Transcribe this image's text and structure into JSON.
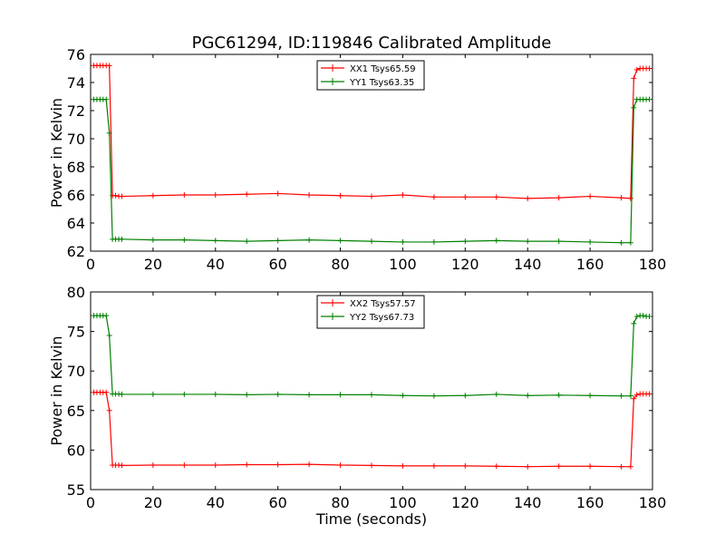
{
  "title": "PGC61294, ID:119846 Calibrated Amplitude",
  "colors": {
    "red": "#ff0000",
    "green": "#008000",
    "axis": "#000000",
    "background": "#ffffff"
  },
  "chart_data": [
    {
      "type": "line",
      "ylabel": "Power in Kelvin",
      "xlabel": "",
      "xlim": [
        0,
        180
      ],
      "ylim": [
        62,
        76
      ],
      "xticks": [
        0,
        20,
        40,
        60,
        80,
        100,
        120,
        140,
        160,
        180
      ],
      "yticks": [
        62,
        64,
        66,
        68,
        70,
        72,
        74,
        76
      ],
      "legend": "top-center",
      "grid": false,
      "marker": "+",
      "x": [
        1,
        2,
        3,
        4,
        5,
        6,
        7,
        8,
        9,
        10,
        20,
        30,
        40,
        50,
        60,
        70,
        80,
        90,
        100,
        110,
        120,
        130,
        140,
        150,
        160,
        170,
        173,
        174,
        175,
        176,
        177,
        178,
        179
      ],
      "series": [
        {
          "name": "XX1 Tsys65.59",
          "color": "#ff0000",
          "values": [
            75.2,
            75.2,
            75.2,
            75.2,
            75.2,
            75.2,
            65.95,
            65.95,
            65.9,
            65.9,
            65.95,
            66.0,
            66.0,
            66.05,
            66.1,
            66.0,
            65.95,
            65.9,
            66.0,
            65.85,
            65.85,
            65.85,
            65.75,
            65.8,
            65.9,
            65.8,
            65.75,
            74.3,
            74.9,
            75.0,
            75.0,
            75.0,
            75.0
          ]
        },
        {
          "name": "YY1 Tsys63.35",
          "color": "#008000",
          "values": [
            72.8,
            72.8,
            72.8,
            72.8,
            72.8,
            70.4,
            62.85,
            62.85,
            62.85,
            62.85,
            62.8,
            62.8,
            62.75,
            62.7,
            62.75,
            62.8,
            62.75,
            62.7,
            62.65,
            62.65,
            62.7,
            62.75,
            62.7,
            62.7,
            62.65,
            62.6,
            62.6,
            72.2,
            72.8,
            72.8,
            72.8,
            72.8,
            72.8
          ]
        }
      ]
    },
    {
      "type": "line",
      "ylabel": "Power in Kelvin",
      "xlabel": "Time (seconds)",
      "xlim": [
        0,
        180
      ],
      "ylim": [
        55,
        80
      ],
      "xticks": [
        0,
        20,
        40,
        60,
        80,
        100,
        120,
        140,
        160,
        180
      ],
      "yticks": [
        55,
        60,
        65,
        70,
        75,
        80
      ],
      "legend": "top-center",
      "grid": false,
      "marker": "+",
      "x": [
        1,
        2,
        3,
        4,
        5,
        6,
        7,
        8,
        9,
        10,
        20,
        30,
        40,
        50,
        60,
        70,
        80,
        90,
        100,
        110,
        120,
        130,
        140,
        150,
        160,
        170,
        173,
        174,
        175,
        176,
        177,
        178,
        179
      ],
      "series": [
        {
          "name": "XX2 Tsys57.57",
          "color": "#ff0000",
          "values": [
            67.3,
            67.3,
            67.3,
            67.3,
            67.3,
            65.0,
            58.1,
            58.1,
            58.1,
            58.05,
            58.1,
            58.1,
            58.1,
            58.15,
            58.15,
            58.2,
            58.1,
            58.05,
            58.0,
            58.0,
            58.0,
            57.95,
            57.9,
            57.95,
            57.95,
            57.9,
            57.9,
            66.5,
            67.0,
            67.1,
            67.1,
            67.1,
            67.1
          ]
        },
        {
          "name": "YY2 Tsys67.73",
          "color": "#008000",
          "values": [
            77.0,
            77.0,
            77.0,
            77.0,
            77.0,
            74.5,
            67.1,
            67.1,
            67.1,
            67.05,
            67.05,
            67.05,
            67.05,
            67.0,
            67.05,
            67.0,
            67.0,
            67.0,
            66.9,
            66.85,
            66.9,
            67.05,
            66.9,
            66.95,
            66.9,
            66.85,
            66.85,
            76.0,
            76.9,
            77.0,
            77.0,
            76.9,
            76.9
          ]
        }
      ]
    }
  ]
}
